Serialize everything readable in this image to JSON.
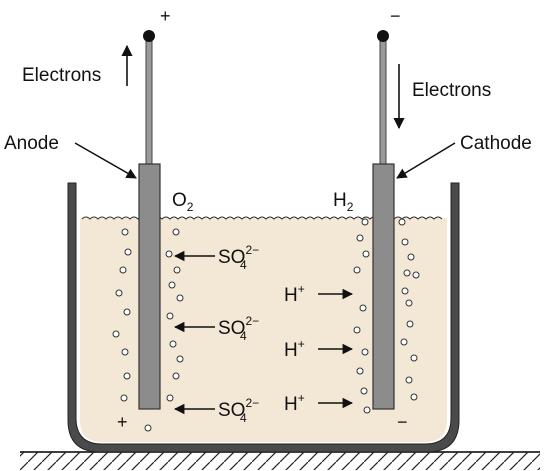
{
  "colors": {
    "electrolyte": "#f3e8d6",
    "container": "#4a4a4a",
    "electrode": "#8c8c8c",
    "lead": "#9a9a9a",
    "ink": "#111111"
  },
  "anode": {
    "terminal_sign": "+",
    "electrons_label": "Electrons",
    "label": "Anode",
    "gas": "O",
    "gas_sub": "2",
    "near_sign": "+"
  },
  "cathode": {
    "terminal_sign": "−",
    "electrons_label": "Electrons",
    "label": "Cathode",
    "gas": "H",
    "gas_sub": "2",
    "near_sign": "−"
  },
  "ions": {
    "sulfate": {
      "base": "SO",
      "sup": "2−",
      "sub": "4"
    },
    "hydrogen": {
      "base": "H",
      "sup": "+"
    }
  }
}
